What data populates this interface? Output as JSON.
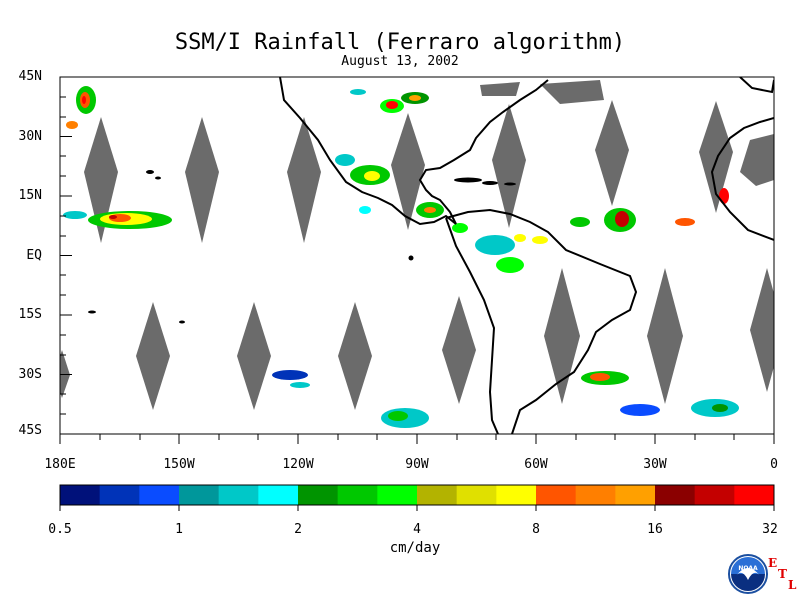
{
  "title": "SSM/I Rainfall (Ferraro algorithm)",
  "date": "August 13, 2002",
  "lat_labels": [
    "45N",
    "30N",
    "15N",
    "EQ",
    "15S",
    "30S",
    "45S"
  ],
  "lon_labels": [
    "180E",
    "150W",
    "120W",
    "90W",
    "60W",
    "30W",
    "0"
  ],
  "colorbar": {
    "colors": [
      "#00117a",
      "#0033b8",
      "#0a4cff",
      "#00979b",
      "#00c8c8",
      "#00ffff",
      "#009400",
      "#00c800",
      "#00ff00",
      "#b3b300",
      "#e0e000",
      "#ffff00",
      "#ff5500",
      "#ff7f00",
      "#ffa000",
      "#8b0000",
      "#c40000",
      "#ff0000"
    ],
    "tick_labels": [
      "0.5",
      "1",
      "2",
      "4",
      "8",
      "16",
      "32"
    ],
    "units": "cm/day"
  },
  "logo": {
    "name": "NOAA",
    "letters": [
      "E",
      "T",
      "L"
    ]
  },
  "colors": {
    "no_data_swath": "#6b6b6b",
    "land_outline": "#000000"
  }
}
